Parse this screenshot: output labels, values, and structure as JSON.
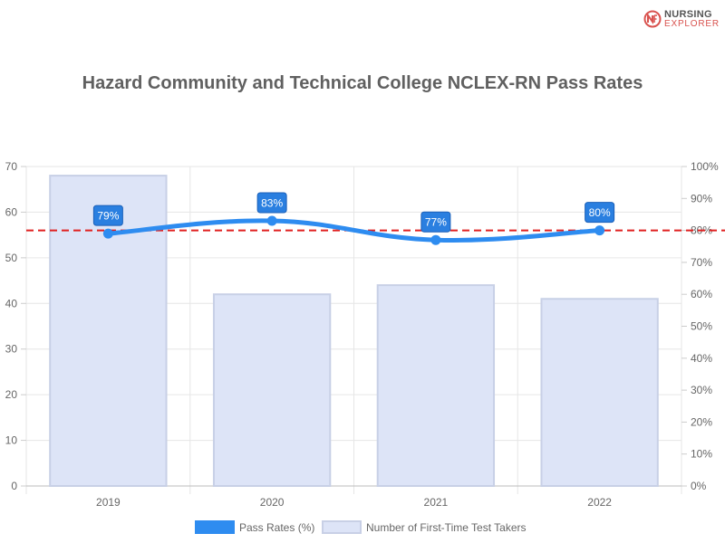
{
  "brand": {
    "line1": "NURSING",
    "line2": "EXPLORER",
    "icon": "nursing-explorer-logo-icon",
    "accent": "#d9534f"
  },
  "chart_data": {
    "type": "bar",
    "title": "Hazard Community and Technical College NCLEX-RN Pass Rates",
    "categories": [
      "2019",
      "2020",
      "2021",
      "2022"
    ],
    "series": [
      {
        "name": "Number of First-Time Test Takers",
        "type": "bar",
        "axis": "left",
        "values": [
          68,
          42,
          44,
          41
        ],
        "color": "#dde4f7",
        "border": "#c8d0e6"
      },
      {
        "name": "Pass Rates (%)",
        "type": "line",
        "axis": "right",
        "values": [
          79,
          83,
          77,
          80
        ],
        "labels": [
          "79%",
          "83%",
          "77%",
          "80%"
        ],
        "color": "#2e8cf0"
      }
    ],
    "reference_line": {
      "value": 80,
      "axis": "right",
      "color": "#e02020",
      "style": "dashed"
    },
    "left_axis": {
      "min": 0,
      "max": 70,
      "ticks": [
        "0",
        "10",
        "20",
        "30",
        "40",
        "50",
        "60",
        "70"
      ]
    },
    "right_axis": {
      "min": 0,
      "max": 100,
      "ticks": [
        "0%",
        "10%",
        "20%",
        "30%",
        "40%",
        "50%",
        "60%",
        "70%",
        "80%",
        "90%",
        "100%"
      ]
    },
    "grid": true,
    "legend_position": "bottom"
  }
}
